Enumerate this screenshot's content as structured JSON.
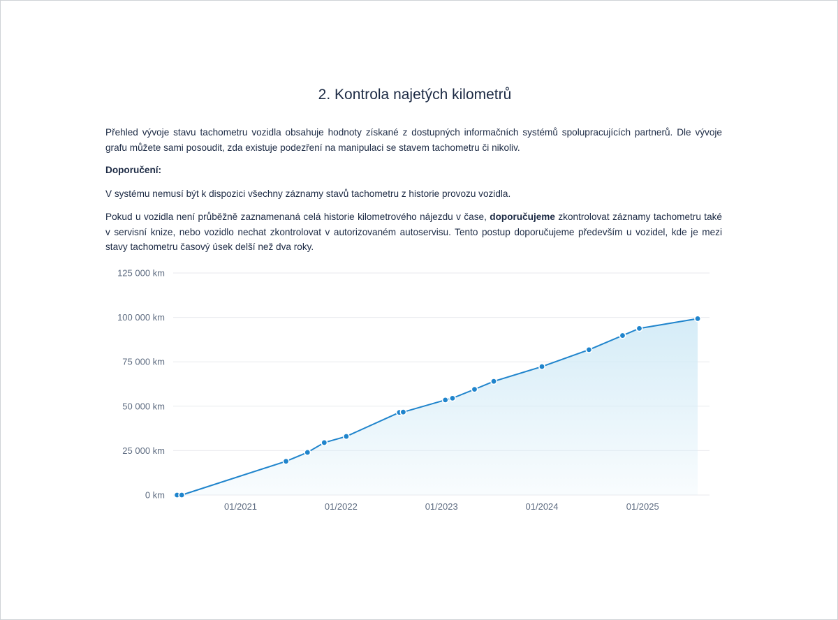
{
  "section": {
    "title": "2. Kontrola najetých kilometrů",
    "intro": "Přehled vývoje stavu tachometru vozidla obsahuje hodnoty získané z dostupných informačních systémů spolupracujících partnerů. Dle vývoje grafu můžete sami posoudit, zda existuje podezření na manipulaci se stavem tachometru či nikoliv.",
    "recommendation_label": "Doporučení:",
    "note": "V systému nemusí být k dispozici všechny záznamy stavů tachometru z historie provozu vozidla.",
    "advice_before": "Pokud u vozidla není průběžně zaznamenaná celá historie kilometrového nájezdu v čase, ",
    "advice_bold": "doporučujeme",
    "advice_after": " zkontrolovat záznamy tachometru také v servisní knize, nebo vozidlo nechat zkontrolovat v autorizovaném autoservisu. Tento postup doporučujeme především u vozidel, kde je mezi stavy tachometru časový úsek delší než dva roky."
  },
  "chart_data": {
    "type": "area",
    "title": "",
    "xlabel": "",
    "ylabel": "",
    "x_axis": "date",
    "x_tick_labels": [
      "01/2021",
      "01/2022",
      "01/2023",
      "01/2024",
      "01/2025"
    ],
    "x_tick_dates": [
      "2021-01-01",
      "2022-01-01",
      "2023-01-01",
      "2024-01-01",
      "2025-01-01"
    ],
    "xlim": [
      "2020-05-01",
      "2025-09-01"
    ],
    "y_tick_labels": [
      "0 km",
      "25 000 km",
      "50 000 km",
      "75 000 km",
      "100 000 km",
      "125 000 km"
    ],
    "y_ticks": [
      0,
      25000,
      50000,
      75000,
      100000,
      125000
    ],
    "ylim": [
      0,
      125000
    ],
    "grid": true,
    "legend": "none",
    "colors": {
      "line": "#1f84cc",
      "point": "#1f84cc",
      "fill": "#d5ecf7",
      "grid": "#e8eaee"
    },
    "series": [
      {
        "points": [
          {
            "x": "2020-05-15",
            "y": 0
          },
          {
            "x": "2020-06-01",
            "y": 0
          },
          {
            "x": "2021-06-15",
            "y": 19000
          },
          {
            "x": "2021-09-01",
            "y": 24000
          },
          {
            "x": "2021-11-01",
            "y": 29500
          },
          {
            "x": "2022-01-20",
            "y": 33000
          },
          {
            "x": "2022-08-01",
            "y": 46500
          },
          {
            "x": "2022-08-15",
            "y": 46700
          },
          {
            "x": "2023-01-15",
            "y": 53500
          },
          {
            "x": "2023-02-10",
            "y": 54500
          },
          {
            "x": "2023-05-01",
            "y": 59500
          },
          {
            "x": "2023-07-10",
            "y": 64000
          },
          {
            "x": "2024-01-01",
            "y": 72300
          },
          {
            "x": "2024-06-20",
            "y": 81800
          },
          {
            "x": "2024-10-20",
            "y": 89800
          },
          {
            "x": "2024-12-20",
            "y": 93800
          },
          {
            "x": "2025-07-20",
            "y": 99300
          }
        ]
      }
    ]
  }
}
